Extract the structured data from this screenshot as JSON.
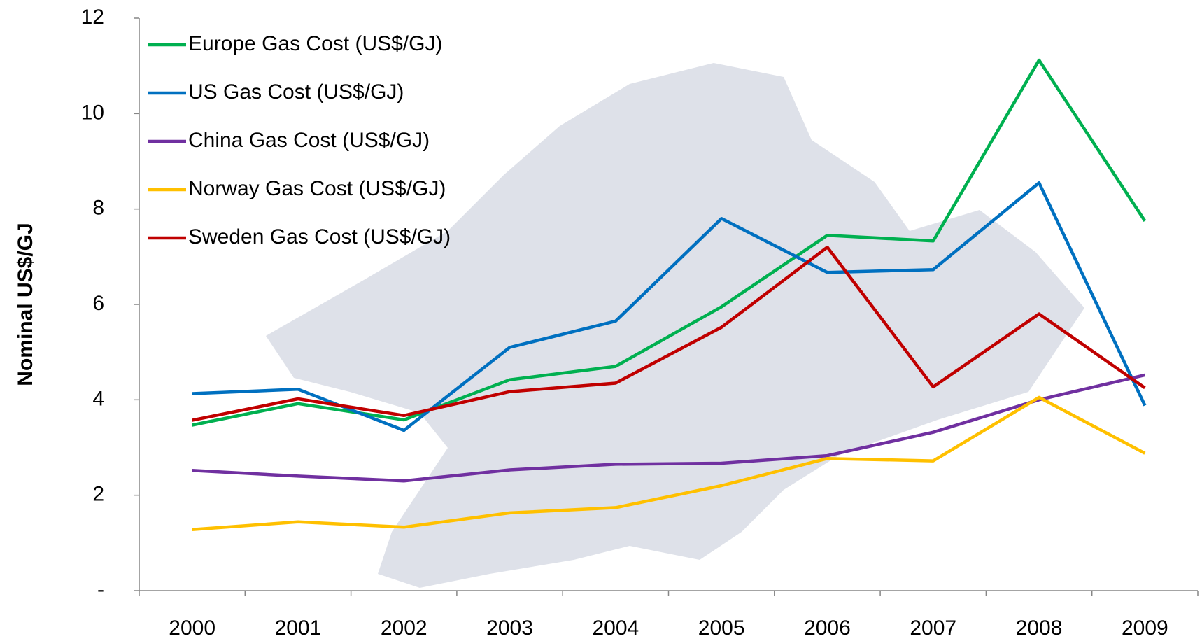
{
  "chart_data": {
    "type": "line",
    "y_label": "Nominal US$/GJ",
    "categories": [
      "2000",
      "2001",
      "2002",
      "2003",
      "2004",
      "2005",
      "2006",
      "2007",
      "2008",
      "2009"
    ],
    "series": [
      {
        "name": "Europe Gas Cost (US$/GJ)",
        "color": "#00b050",
        "values": [
          3.47,
          3.92,
          3.58,
          4.42,
          4.7,
          5.95,
          7.45,
          7.33,
          11.12,
          7.75
        ]
      },
      {
        "name": "US Gas Cost (US$/GJ)",
        "color": "#0070c0",
        "values": [
          4.13,
          4.22,
          3.36,
          5.1,
          5.65,
          7.8,
          6.67,
          6.73,
          8.55,
          3.88
        ]
      },
      {
        "name": "China Gas Cost (US$/GJ)",
        "color": "#7030a0",
        "values": [
          2.52,
          2.4,
          2.3,
          2.53,
          2.65,
          2.67,
          2.83,
          3.32,
          4.0,
          4.52
        ]
      },
      {
        "name": "Norway Gas Cost (US$/GJ)",
        "color": "#ffc000",
        "values": [
          1.28,
          1.44,
          1.33,
          1.63,
          1.74,
          2.2,
          2.77,
          2.72,
          4.05,
          2.88
        ]
      },
      {
        "name": "Sweden Gas Cost (US$/GJ)",
        "color": "#c00000",
        "values": [
          3.57,
          4.02,
          3.67,
          4.17,
          4.35,
          5.52,
          7.2,
          4.27,
          5.8,
          4.25
        ]
      }
    ],
    "ylim": [
      0,
      12
    ],
    "yticks": [
      {
        "value": 0,
        "label": "-"
      },
      2,
      4,
      6,
      8,
      10,
      12
    ],
    "legend": "upper left",
    "grid": false
  }
}
